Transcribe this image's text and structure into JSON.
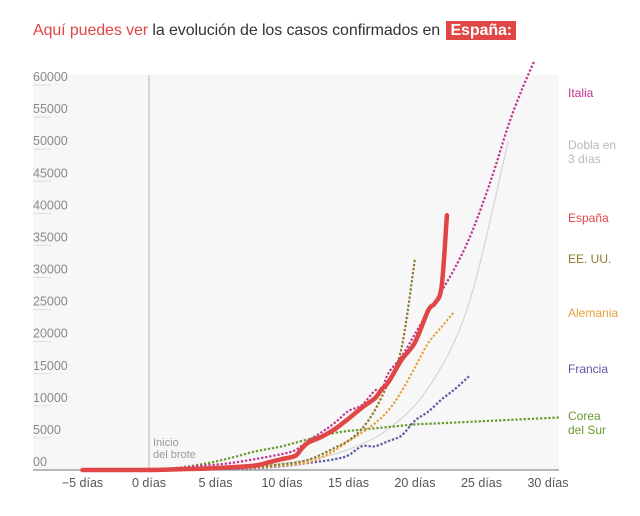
{
  "headline": {
    "lead": "Aquí puedes ver",
    "rest": "la evolución de los casos confirmados en",
    "badge": "España:"
  },
  "chart_data": {
    "type": "line",
    "title": "Aquí puedes ver la evolución de los casos confirmados en España:",
    "xlabel": "",
    "ylabel": "",
    "xlim": [
      -5,
      31
    ],
    "ylim": [
      0,
      60000
    ],
    "grid": false,
    "x_ticks": [
      {
        "value": -5,
        "label": "−5 días"
      },
      {
        "value": 0,
        "label": "0 días"
      },
      {
        "value": 5,
        "label": "5 días"
      },
      {
        "value": 10,
        "label": "10 días"
      },
      {
        "value": 15,
        "label": "15 días"
      },
      {
        "value": 20,
        "label": "20 días"
      },
      {
        "value": 25,
        "label": "25 días"
      },
      {
        "value": 30,
        "label": "30 días"
      }
    ],
    "y_ticks": [
      {
        "value": 0,
        "label": "00"
      },
      {
        "value": 5000,
        "label": "5000"
      },
      {
        "value": 10000,
        "label": "10000"
      },
      {
        "value": 15000,
        "label": "15000"
      },
      {
        "value": 20000,
        "label": "20000"
      },
      {
        "value": 25000,
        "label": "25000"
      },
      {
        "value": 30000,
        "label": "30000"
      },
      {
        "value": 35000,
        "label": "35000"
      },
      {
        "value": 40000,
        "label": "40000"
      },
      {
        "value": 45000,
        "label": "45000"
      },
      {
        "value": 50000,
        "label": "50000"
      },
      {
        "value": 55000,
        "label": "55000"
      },
      {
        "value": 60000,
        "label": "60000"
      }
    ],
    "annotations": [
      {
        "x": 0,
        "text": [
          "Inicio",
          "del brote"
        ]
      }
    ],
    "legend_placement": "right (direct labels)",
    "series": [
      {
        "name": "Italia",
        "label": [
          "Italia"
        ],
        "color": "#c0368f",
        "style": "dotted",
        "label_value": 58000,
        "x": [
          -5,
          0,
          2,
          4,
          6,
          8,
          10,
          11,
          12,
          13,
          14,
          15,
          16,
          17,
          17.5,
          18,
          19,
          20,
          21,
          22,
          23,
          24,
          25,
          26,
          27,
          28,
          29
        ],
        "y": [
          0,
          150,
          300,
          650,
          1050,
          1700,
          2500,
          3100,
          4600,
          5900,
          7400,
          9200,
          10100,
          12400,
          12500,
          15100,
          17700,
          21200,
          24700,
          27900,
          31500,
          35700,
          41000,
          47000,
          53600,
          59100,
          63900
        ]
      },
      {
        "name": "Dobla en 3 días",
        "label": [
          "Dobla en",
          "3 días"
        ],
        "color": "#cfcfcf",
        "style": "solid",
        "label_value": 50000,
        "x": [
          -5,
          0,
          3,
          6,
          9,
          12,
          15,
          18,
          21,
          24,
          27
        ],
        "y": [
          0,
          100,
          200,
          400,
          800,
          1600,
          3200,
          6400,
          12800,
          25600,
          51200
        ]
      },
      {
        "name": "España",
        "label": [
          "España"
        ],
        "color": "#e04646",
        "style": "thick",
        "label_value": 39000,
        "x": [
          -5,
          0,
          2,
          4,
          6,
          8,
          9,
          10,
          11,
          11.5,
          12,
          13,
          14,
          15,
          16,
          17,
          17.5,
          18,
          19,
          20,
          21,
          21.5,
          22,
          22.4
        ],
        "y": [
          0,
          0,
          100,
          200,
          400,
          700,
          1200,
          1700,
          2200,
          3400,
          4300,
          5200,
          6400,
          8000,
          9700,
          11200,
          12600,
          13700,
          17200,
          19900,
          24900,
          26000,
          28600,
          39700
        ]
      },
      {
        "name": "EE. UU.",
        "label": [
          "EE. UU."
        ],
        "color": "#8c7a2a",
        "style": "dotted",
        "label_value": 31000,
        "x": [
          -5,
          0,
          4,
          8,
          10,
          12,
          14,
          15,
          16,
          17,
          18,
          19,
          20
        ],
        "y": [
          0,
          0,
          200,
          500,
          900,
          1600,
          3500,
          4600,
          6400,
          9400,
          13700,
          19100,
          33000
        ]
      },
      {
        "name": "Alemania",
        "label": [
          "Alemania"
        ],
        "color": "#e8a23c",
        "style": "dotted",
        "label_value": 24000,
        "x": [
          -5,
          0,
          4,
          8,
          10,
          12,
          13,
          14,
          15,
          16,
          17,
          18,
          19,
          20,
          21,
          22,
          23
        ],
        "y": [
          0,
          0,
          150,
          400,
          700,
          1200,
          2000,
          3100,
          4500,
          5800,
          7300,
          9300,
          12300,
          16000,
          19800,
          22300,
          24800
        ]
      },
      {
        "name": "Francia",
        "label": [
          "Francia"
        ],
        "color": "#5c57a6",
        "style": "dotted",
        "label_value": 15000,
        "x": [
          -5,
          0,
          4,
          8,
          10,
          12,
          14,
          15,
          16,
          17,
          18,
          19,
          20,
          21,
          22,
          23,
          24
        ],
        "y": [
          0,
          0,
          100,
          300,
          600,
          1100,
          1700,
          2300,
          3700,
          3700,
          4500,
          5400,
          7700,
          9100,
          11000,
          12600,
          14500
        ]
      },
      {
        "name": "Corea del Sur",
        "label": [
          "Corea",
          "del Sur"
        ],
        "color": "#6a9a2e",
        "style": "dotted",
        "label_value": 7000,
        "x": [
          -5,
          0,
          2,
          4,
          6,
          8,
          10,
          12,
          14,
          16,
          18,
          20,
          22,
          24,
          26,
          28,
          31
        ],
        "y": [
          0,
          0,
          300,
          900,
          1800,
          2900,
          3700,
          4800,
          5800,
          6300,
          6700,
          7100,
          7300,
          7500,
          7700,
          7900,
          8200
        ]
      }
    ]
  }
}
